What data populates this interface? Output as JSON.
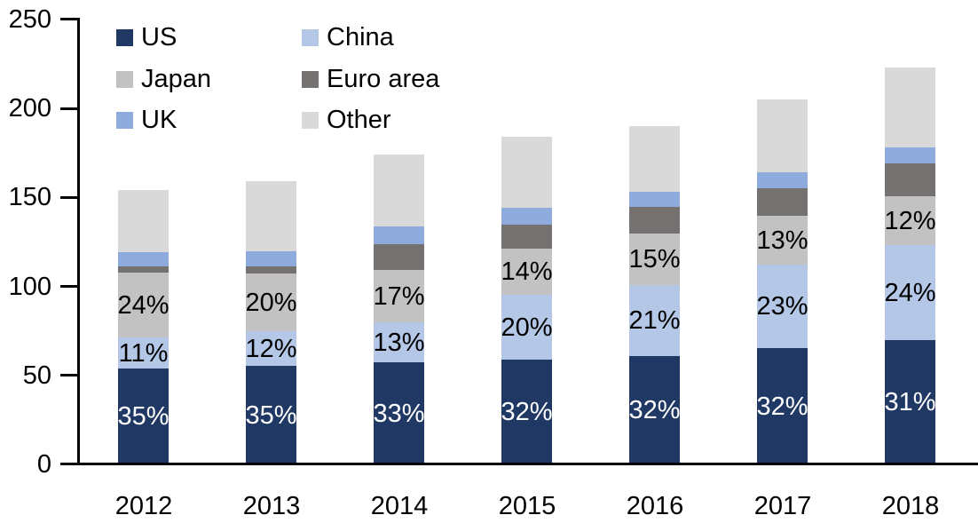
{
  "chart_data": {
    "type": "bar",
    "stacked": true,
    "title": "",
    "xlabel": "",
    "ylabel": "",
    "categories": [
      "2012",
      "2013",
      "2014",
      "2015",
      "2016",
      "2017",
      "2018"
    ],
    "series": [
      {
        "name": "US",
        "color": "#1f3864",
        "values": [
          54,
          55.5,
          57.5,
          59,
          61,
          65.5,
          70
        ],
        "labels": [
          "35%",
          "35%",
          "33%",
          "32%",
          "32%",
          "32%",
          "31%"
        ],
        "label_color": "#ffffff"
      },
      {
        "name": "China",
        "color": "#b4c7e7",
        "values": [
          17.5,
          19.5,
          22.5,
          36.5,
          40,
          47,
          53.5
        ],
        "labels": [
          "11%",
          "12%",
          "13%",
          "20%",
          "21%",
          "23%",
          "24%"
        ],
        "label_color": "#000000"
      },
      {
        "name": "Japan",
        "color": "#c2c2c2",
        "values": [
          36.5,
          32.5,
          29.5,
          26,
          28.5,
          27,
          27
        ],
        "labels": [
          "24%",
          "20%",
          "17%",
          "14%",
          "15%",
          "13%",
          "12%"
        ],
        "label_color": "#000000"
      },
      {
        "name": "Euro area",
        "color": "#767171",
        "values": [
          3.5,
          4,
          14.5,
          13,
          15,
          15.5,
          18.5
        ],
        "labels": null,
        "label_color": null
      },
      {
        "name": "UK",
        "color": "#8faadc",
        "values": [
          8,
          8.5,
          9.5,
          9.5,
          8.5,
          9,
          9
        ],
        "labels": null,
        "label_color": null
      },
      {
        "name": "Other",
        "color": "#d9d9d9",
        "values": [
          34.5,
          39,
          40.5,
          40,
          37,
          41,
          45
        ],
        "labels": null,
        "label_color": null
      }
    ],
    "totals": [
      154,
      159,
      174,
      184,
      190,
      205,
      223
    ],
    "stack_order_bottom_to_top": [
      "US",
      "China",
      "Japan",
      "Euro area",
      "UK",
      "Other"
    ],
    "yticks": [
      0,
      50,
      100,
      150,
      200,
      250
    ],
    "ylim": [
      0,
      250
    ],
    "gridlines": false,
    "axis_color": "#000000",
    "background_color": "#ffffff",
    "legend": {
      "position": "top-left",
      "columns": 2,
      "order_row_major": [
        "US",
        "China",
        "Japan",
        "Euro area",
        "UK",
        "Other"
      ]
    }
  }
}
